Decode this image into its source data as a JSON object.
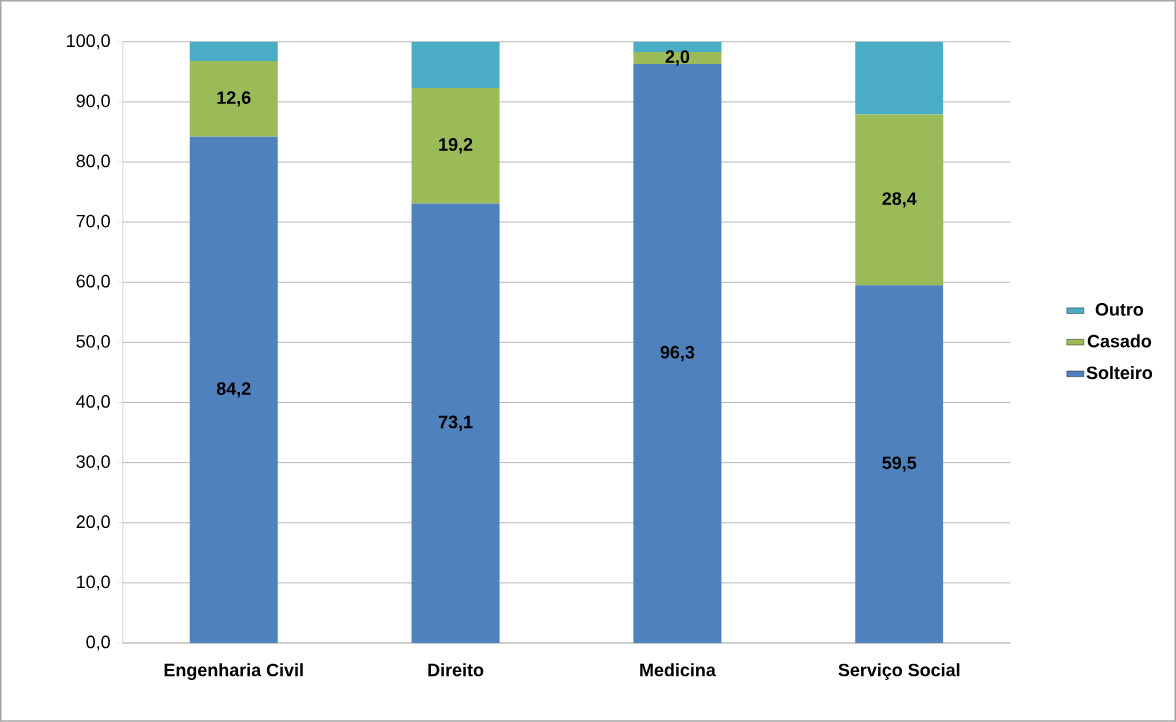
{
  "chart_data": {
    "type": "bar",
    "stacked": true,
    "categories": [
      "Engenharia Civil",
      "Direito",
      "Medicina",
      "Serviço Social"
    ],
    "series": [
      {
        "name": "Solteiro",
        "color": "#4f81bd",
        "values": [
          84.2,
          73.1,
          96.3,
          59.5
        ],
        "value_labels": [
          "84,2",
          "73,1",
          "96,3",
          "59,5"
        ]
      },
      {
        "name": "Casado",
        "color": "#9bbb59",
        "values": [
          12.6,
          19.2,
          2.0,
          28.4
        ],
        "value_labels": [
          "12,6",
          "19,2",
          "2,0",
          "28,4"
        ]
      },
      {
        "name": "Outro",
        "color": "#4bacc6",
        "values": [
          3.2,
          7.7,
          1.7,
          12.1
        ]
      }
    ],
    "ylim": [
      0,
      100
    ],
    "yticks": [
      {
        "value": 0,
        "label": "0,0"
      },
      {
        "value": 10,
        "label": "10,0"
      },
      {
        "value": 20,
        "label": "20,0"
      },
      {
        "value": 30,
        "label": "30,0"
      },
      {
        "value": 40,
        "label": "40,0"
      },
      {
        "value": 50,
        "label": "50,0"
      },
      {
        "value": 60,
        "label": "60,0"
      },
      {
        "value": 70,
        "label": "70,0"
      },
      {
        "value": 80,
        "label": "80,0"
      },
      {
        "value": 90,
        "label": "90,0"
      },
      {
        "value": 100,
        "label": "100,0"
      }
    ],
    "grid": "y",
    "legend": "right"
  }
}
